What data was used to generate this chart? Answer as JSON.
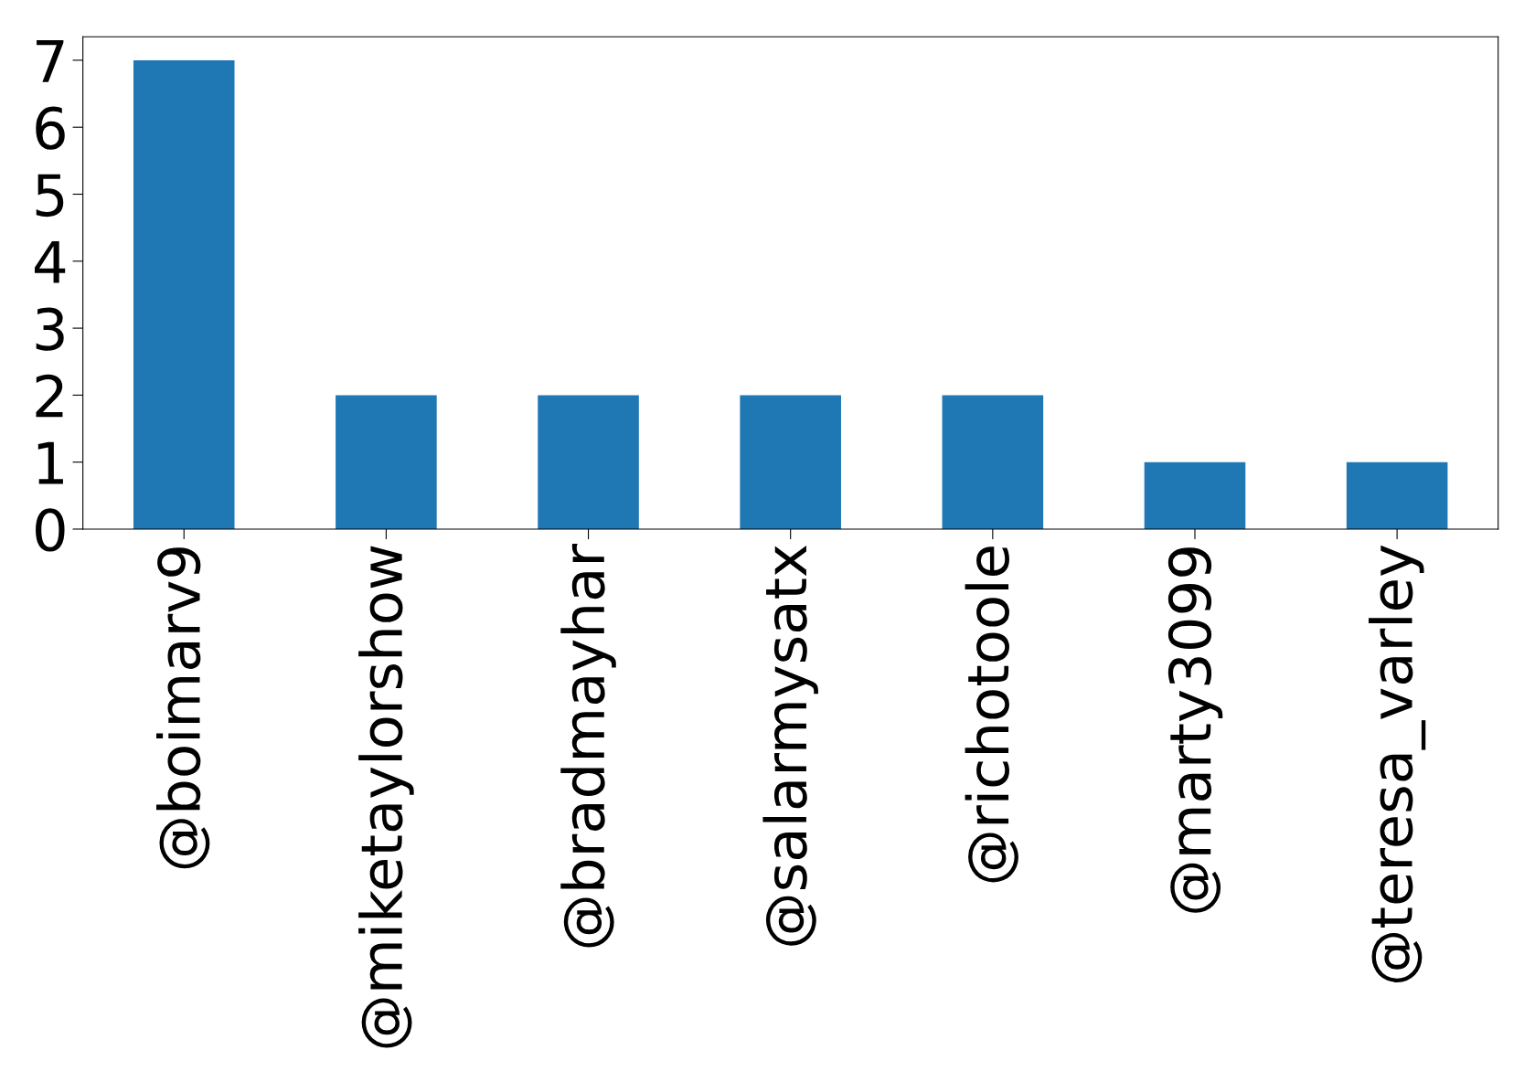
{
  "chart_data": {
    "type": "bar",
    "categories": [
      "@boimarv9",
      "@miketaylorshow",
      "@bradmayhar",
      "@salarmysatx",
      "@richotoole",
      "@marty3099",
      "@teresa_varley"
    ],
    "values": [
      7,
      2,
      2,
      2,
      2,
      1,
      1
    ],
    "color": "#1f77b4",
    "ylim": [
      0,
      7.35
    ],
    "yticks": [
      0,
      1,
      2,
      3,
      4,
      5,
      6,
      7
    ],
    "grid": false
  }
}
